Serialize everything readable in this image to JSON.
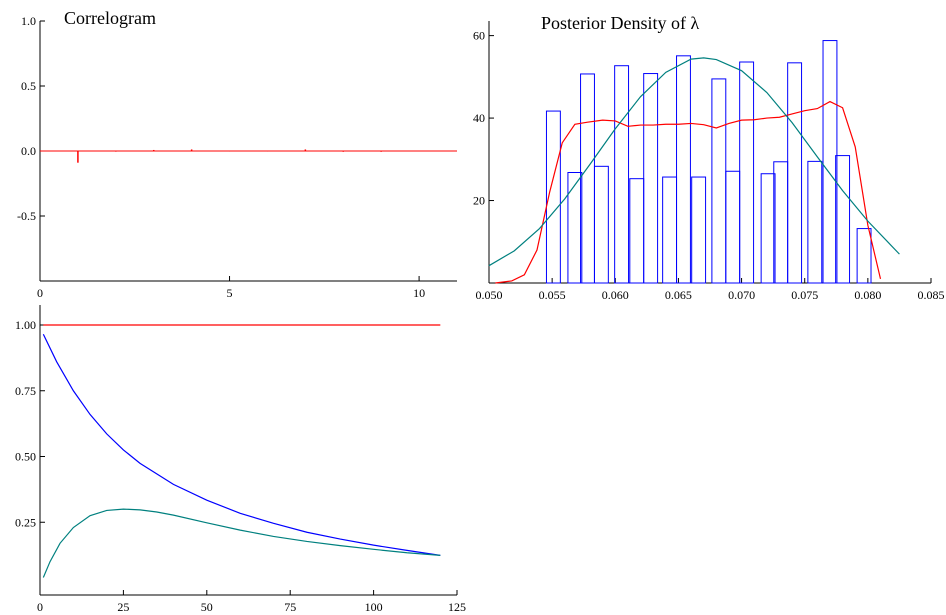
{
  "colors": {
    "red": "#ff0000",
    "blue": "#0000ff",
    "teal": "#00807f",
    "axis": "#000000"
  },
  "chart_data": [
    {
      "type": "bar",
      "title": "Correlogram",
      "xlabel": "",
      "ylabel": "",
      "xlim": [
        0,
        11
      ],
      "ylim": [
        -1.0,
        1.0
      ],
      "xticks": [
        0,
        5,
        10
      ],
      "yticks": [
        1.0,
        0.5,
        0.0,
        -0.5
      ],
      "ytick_labels": [
        "1.0",
        "0.5",
        "0.0",
        "-0.5"
      ],
      "xtick_labels": [
        "0",
        "5",
        "10"
      ],
      "lags": [
        1,
        2,
        3,
        4,
        5,
        6,
        7,
        8,
        9,
        10
      ],
      "values": [
        -0.09,
        -0.005,
        0.008,
        0.012,
        -0.004,
        -0.004,
        0.012,
        -0.006,
        -0.006,
        0.0
      ],
      "grid": false
    },
    {
      "type": "bar",
      "title": "Posterior Density of λ",
      "xlabel": "",
      "ylabel": "",
      "xlim": [
        0.05,
        0.085
      ],
      "ylim": [
        0,
        65
      ],
      "xticks": [
        0.05,
        0.055,
        0.06,
        0.065,
        0.07,
        0.075,
        0.08,
        0.085
      ],
      "xtick_labels": [
        "0.050",
        "0.055",
        "0.060",
        "0.065",
        "0.070",
        "0.075",
        "0.080",
        "0.085"
      ],
      "yticks": [
        20,
        40,
        60
      ],
      "ytick_labels": [
        "20",
        "40",
        "60"
      ],
      "histogram": {
        "bin_width": 0.0011,
        "bin_centers": [
          0.0551,
          0.0568,
          0.0578,
          0.0589,
          0.0605,
          0.0617,
          0.0628,
          0.0643,
          0.0654,
          0.0666,
          0.0682,
          0.0693,
          0.0704,
          0.0721,
          0.0731,
          0.0742,
          0.0758,
          0.077,
          0.078,
          0.0797
        ],
        "values": [
          41.7,
          26.8,
          50.7,
          28.3,
          52.7,
          25.3,
          50.8,
          25.7,
          55.1,
          25.7,
          49.5,
          27.1,
          53.6,
          26.5,
          29.4,
          53.4,
          29.5,
          58.8,
          30.9,
          13.2
        ]
      },
      "series": [
        {
          "color": "red",
          "x": [
            0.0505,
            0.0518,
            0.0528,
            0.0538,
            0.0548,
            0.0558,
            0.0568,
            0.0578,
            0.059,
            0.06,
            0.061,
            0.062,
            0.063,
            0.064,
            0.065,
            0.066,
            0.067,
            0.068,
            0.069,
            0.07,
            0.071,
            0.072,
            0.073,
            0.074,
            0.075,
            0.076,
            0.077,
            0.078,
            0.079,
            0.08,
            0.081
          ],
          "y": [
            0.0,
            0.5,
            2.0,
            8.0,
            22.0,
            34.0,
            38.5,
            39.0,
            39.5,
            39.3,
            38.0,
            38.3,
            38.3,
            38.5,
            38.5,
            38.7,
            38.4,
            37.6,
            38.7,
            39.5,
            39.6,
            40.0,
            40.2,
            41.0,
            41.8,
            42.3,
            44.0,
            42.5,
            33.0,
            14.0,
            1.0
          ]
        },
        {
          "color": "teal",
          "x": [
            0.05,
            0.052,
            0.054,
            0.056,
            0.058,
            0.06,
            0.062,
            0.064,
            0.066,
            0.067,
            0.068,
            0.07,
            0.072,
            0.074,
            0.076,
            0.078,
            0.08,
            0.0825
          ],
          "y": [
            4.2,
            7.8,
            13.2,
            20.4,
            28.8,
            37.4,
            45.2,
            51.1,
            54.3,
            54.6,
            54.2,
            51.5,
            46.2,
            38.9,
            30.6,
            22.4,
            15.0,
            7.0
          ]
        }
      ],
      "grid": false
    },
    {
      "type": "line",
      "title": "",
      "xlabel": "",
      "ylabel": "",
      "xlim": [
        0,
        125
      ],
      "ylim": [
        0.0,
        1.0
      ],
      "xticks": [
        0,
        25,
        50,
        75,
        100,
        125
      ],
      "xtick_labels": [
        "0",
        "25",
        "50",
        "75",
        "100",
        "125"
      ],
      "yticks": [
        1.0,
        0.75,
        0.5,
        0.25
      ],
      "ytick_labels": [
        "1.00",
        "0.75",
        "0.50",
        "0.25"
      ],
      "series": [
        {
          "color": "red",
          "x": [
            1,
            120
          ],
          "y": [
            1.0,
            1.0
          ]
        },
        {
          "color": "blue",
          "x": [
            1,
            5,
            10,
            15,
            20,
            25,
            30,
            40,
            50,
            60,
            70,
            80,
            90,
            100,
            110,
            120
          ],
          "y": [
            0.965,
            0.86,
            0.75,
            0.66,
            0.586,
            0.525,
            0.474,
            0.394,
            0.334,
            0.284,
            0.246,
            0.212,
            0.186,
            0.163,
            0.143,
            0.124
          ]
        },
        {
          "color": "teal",
          "x": [
            1,
            3,
            6,
            10,
            15,
            20,
            25,
            30,
            35,
            40,
            50,
            60,
            70,
            80,
            90,
            100,
            110,
            120
          ],
          "y": [
            0.04,
            0.1,
            0.17,
            0.23,
            0.275,
            0.295,
            0.3,
            0.297,
            0.289,
            0.277,
            0.248,
            0.22,
            0.196,
            0.177,
            0.161,
            0.147,
            0.134,
            0.124
          ]
        }
      ],
      "grid": false
    }
  ]
}
